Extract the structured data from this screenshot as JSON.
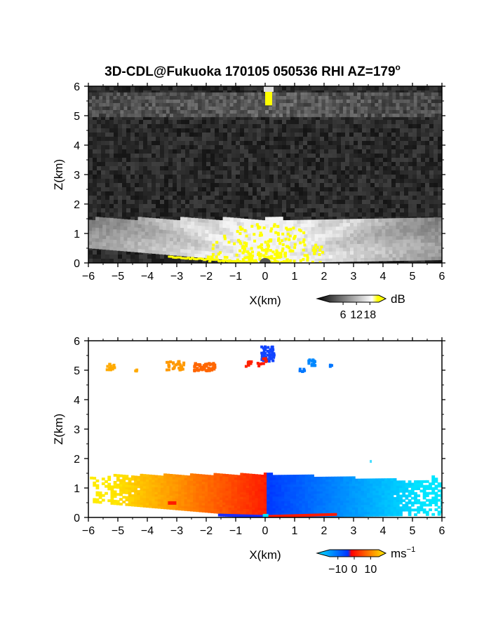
{
  "title": "3D-CDL@Fukuoka 170105 050536 RHI AZ=179",
  "title_superscript": "o",
  "chart_data": [
    {
      "type": "heatmap",
      "quantity": "reflectivity",
      "xlabel": "X(km)",
      "ylabel": "Z(km)",
      "xlim": [
        -6,
        6
      ],
      "ylim": [
        0,
        6
      ],
      "xticks": [
        "−6",
        "−5",
        "−4",
        "−3",
        "−2",
        "−1",
        "0",
        "1",
        "2",
        "3",
        "4",
        "5",
        "6"
      ],
      "yticks": [
        "0",
        "1",
        "2",
        "3",
        "4",
        "5",
        "6"
      ],
      "colorbar": {
        "unit": "dB",
        "ticks": [
          "6",
          "12",
          "18"
        ],
        "tick_values": [
          6,
          12,
          18
        ],
        "range": [
          0,
          22
        ],
        "colors": [
          "#000000",
          "#ffffff",
          "#ffff00"
        ]
      },
      "features": {
        "boundary_layer_top_km": 1.45,
        "cloud_layer_km": [
          4.95,
          5.75
        ],
        "saturated_value_color": "#ffff00"
      }
    },
    {
      "type": "heatmap",
      "quantity": "doppler_velocity",
      "xlabel": "X(km)",
      "ylabel": "Z(km)",
      "xlim": [
        -6,
        6
      ],
      "ylim": [
        0,
        6
      ],
      "xticks": [
        "−6",
        "−5",
        "−4",
        "−3",
        "−2",
        "−1",
        "0",
        "1",
        "2",
        "3",
        "4",
        "5",
        "6"
      ],
      "yticks": [
        "0",
        "1",
        "2",
        "3",
        "4",
        "5",
        "6"
      ],
      "colorbar": {
        "unit": "ms",
        "unit_superscript": "−1",
        "ticks": [
          "−10",
          "0",
          "10"
        ],
        "tick_values": [
          -10,
          0,
          10
        ],
        "range": [
          -15,
          15
        ],
        "colors": [
          "#00e5ff",
          "#0033ff",
          "#ff0000",
          "#ffee00"
        ]
      },
      "features": {
        "boundary_layer_top_km": 1.45,
        "cloud_echo_km": [
          4.95,
          5.9
        ],
        "left_side_sign": "positive",
        "right_side_sign": "negative"
      }
    }
  ]
}
